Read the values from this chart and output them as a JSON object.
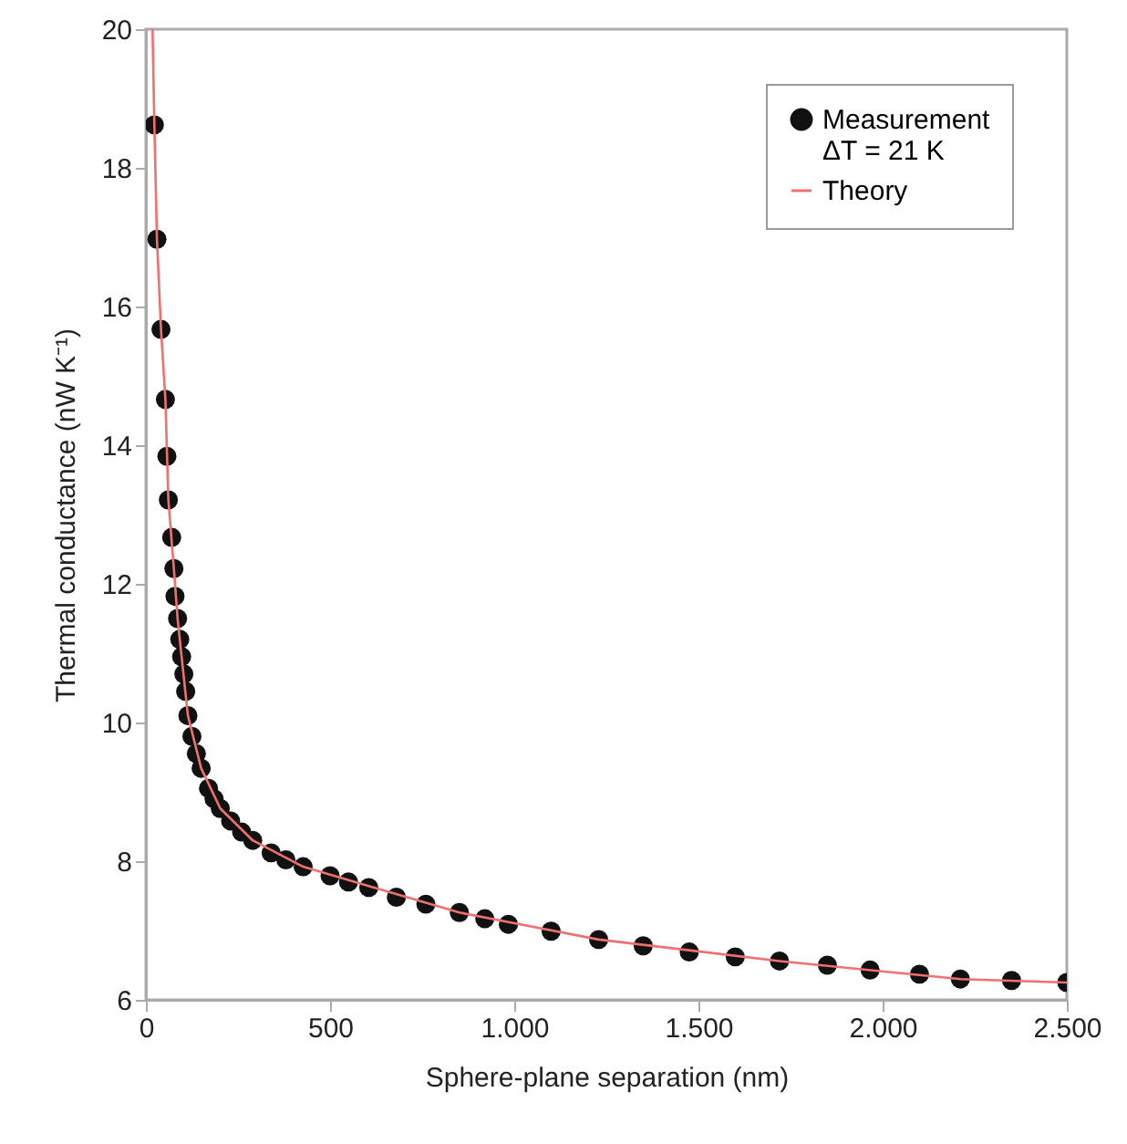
{
  "chart_data": {
    "type": "scatter",
    "xlabel": "Sphere-plane separation (nm)",
    "ylabel": "Thermal conductance (nW K⁻¹)",
    "xlim": [
      0,
      2500
    ],
    "xticks": [
      0,
      500,
      {
        "value": 1000,
        "label": "1.000"
      },
      {
        "value": 1500,
        "label": "1.500"
      },
      {
        "value": 2000,
        "label": "2.000"
      },
      {
        "value": 2500,
        "label": "2.500"
      }
    ],
    "ylim": [
      6,
      20
    ],
    "yticks": [
      6,
      8,
      10,
      12,
      14,
      16,
      18,
      20
    ],
    "grid": false,
    "legend": "top right",
    "series": [
      {
        "marker": "circle",
        "name": "Measurement\nΔT = 21 K",
        "color": "#111111",
        "x": [
          23,
          30,
          41,
          53,
          57,
          61,
          70,
          76,
          79,
          86,
          92,
          97,
          103,
          108,
          114,
          125,
          137,
          150,
          170,
          185,
          202,
          230,
          260,
          290,
          340,
          380,
          427,
          500,
          550,
          605,
          680,
          760,
          851,
          920,
          984,
          1100,
          1229,
          1350,
          1475,
          1600,
          1720,
          1850,
          1966,
          2100,
          2211,
          2350,
          2500
        ],
        "values": [
          18.62,
          16.97,
          15.67,
          14.66,
          13.84,
          13.21,
          12.67,
          12.22,
          11.82,
          11.5,
          11.2,
          10.95,
          10.7,
          10.45,
          10.1,
          9.8,
          9.55,
          9.34,
          9.05,
          8.9,
          8.76,
          8.58,
          8.42,
          8.3,
          8.12,
          8.02,
          7.92,
          7.79,
          7.7,
          7.62,
          7.48,
          7.38,
          7.26,
          7.17,
          7.09,
          6.99,
          6.87,
          6.78,
          6.69,
          6.62,
          6.56,
          6.5,
          6.43,
          6.37,
          6.3,
          6.28,
          6.25
        ]
      },
      {
        "type": "line",
        "name": "Theory",
        "color": "#f07070",
        "line_style": "solid",
        "x": [
          18,
          23,
          30,
          41,
          53,
          61,
          76,
          86,
          97,
          114,
          150,
          202,
          290,
          427,
          605,
          851,
          1229,
          1720,
          2211,
          2500
        ],
        "values": [
          20,
          18.62,
          16.97,
          15.67,
          14.66,
          13.21,
          12.22,
          11.5,
          10.95,
          10.1,
          9.34,
          8.76,
          8.3,
          7.92,
          7.64,
          7.26,
          6.87,
          6.56,
          6.3,
          6.25
        ]
      }
    ]
  }
}
